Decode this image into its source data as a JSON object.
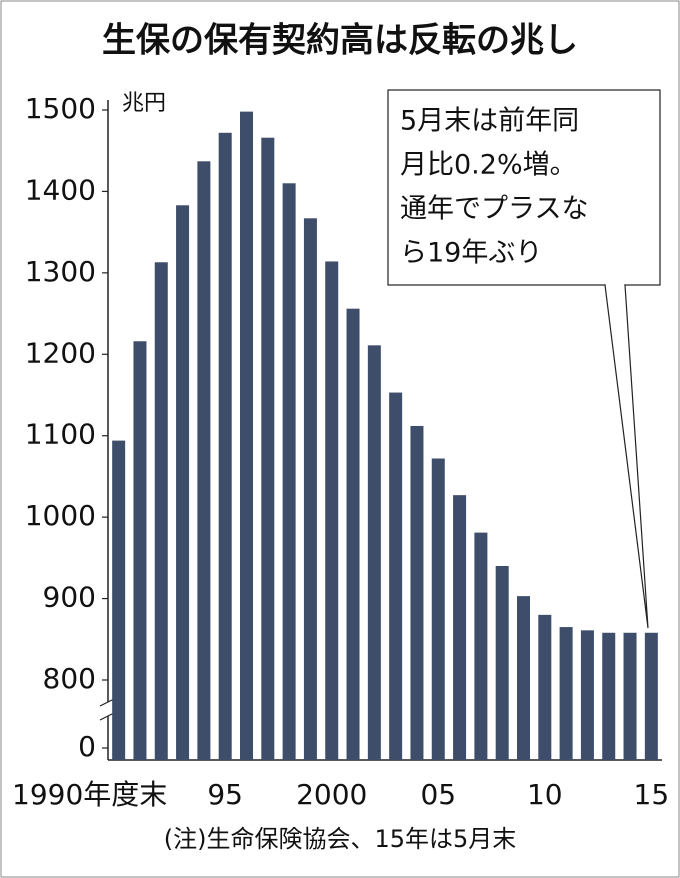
{
  "chart_data": {
    "type": "bar",
    "title": "生保の保有契約高は反転の兆し",
    "y_unit": "兆円",
    "categories": [
      "1990年度末",
      null,
      null,
      null,
      null,
      "95",
      null,
      null,
      null,
      null,
      "2000",
      null,
      null,
      null,
      null,
      "05",
      null,
      null,
      null,
      null,
      "10",
      null,
      null,
      null,
      null,
      "15"
    ],
    "values": [
      1094,
      1216,
      1313,
      1383,
      1437,
      1472,
      1498,
      1466,
      1410,
      1367,
      1314,
      1256,
      1211,
      1153,
      1112,
      1072,
      1027,
      981,
      940,
      903,
      880,
      865,
      861,
      858,
      858,
      858
    ],
    "color": "#3e4e6a",
    "ylim": [
      800,
      1500
    ],
    "yticks": [
      0,
      800,
      900,
      1000,
      1100,
      1200,
      1300,
      1400,
      1500
    ],
    "axis_break": true,
    "annotation": [
      "5月末は前年同",
      "月比0.2%増。",
      "通年でプラスな",
      "ら19年ぶり"
    ],
    "note": "(注)生命保険協会、15年は5月末"
  }
}
